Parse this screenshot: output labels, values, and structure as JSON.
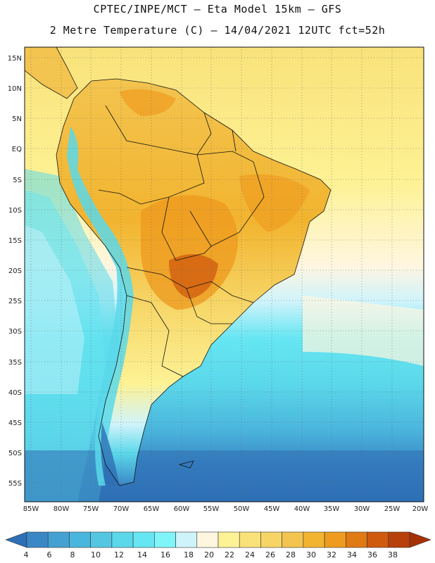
{
  "title": {
    "line1": "CPTEC/INPE/MCT –  Eta Model 15km – GFS",
    "line2": "2 Metre Temperature (C) – 14/04/2021 12UTC fct=52h"
  },
  "axes": {
    "lat_labels": [
      "15N",
      "10N",
      "5N",
      "EQ",
      "5S",
      "10S",
      "15S",
      "20S",
      "25S",
      "30S",
      "35S",
      "40S",
      "45S",
      "50S",
      "55S"
    ],
    "lon_labels": [
      "85W",
      "80W",
      "75W",
      "70W",
      "65W",
      "60W",
      "55W",
      "50W",
      "45W",
      "40W",
      "35W",
      "30W",
      "25W",
      "20W"
    ]
  },
  "colorbar": {
    "labels": [
      "4",
      "6",
      "8",
      "10",
      "12",
      "14",
      "16",
      "18",
      "20",
      "22",
      "24",
      "26",
      "28",
      "30",
      "32",
      "34",
      "36",
      "38"
    ],
    "colors": [
      "#2e6fb5",
      "#3a87c6",
      "#45a1d2",
      "#4bb6dd",
      "#54c6e2",
      "#5bd8ea",
      "#66e6f2",
      "#7ff5fa",
      "#cff3fb",
      "#fff6e0",
      "#fdf295",
      "#f9e27a",
      "#f6d566",
      "#f3c44f",
      "#f2b42f",
      "#ee9b1f",
      "#e07a14",
      "#cf5a0e",
      "#b8400a",
      "#a53006"
    ]
  },
  "chart_data": {
    "type": "heatmap",
    "title": "2 Metre Temperature (C) – 14/04/2021 12UTC fct=52h",
    "variable": "2 Metre Temperature",
    "units": "C",
    "x_range": [
      "85W",
      "20W"
    ],
    "y_range": [
      "15N",
      "55S"
    ],
    "color_levels": [
      4,
      6,
      8,
      10,
      12,
      14,
      16,
      18,
      20,
      22,
      24,
      26,
      28,
      30,
      32,
      34,
      36,
      38
    ]
  }
}
